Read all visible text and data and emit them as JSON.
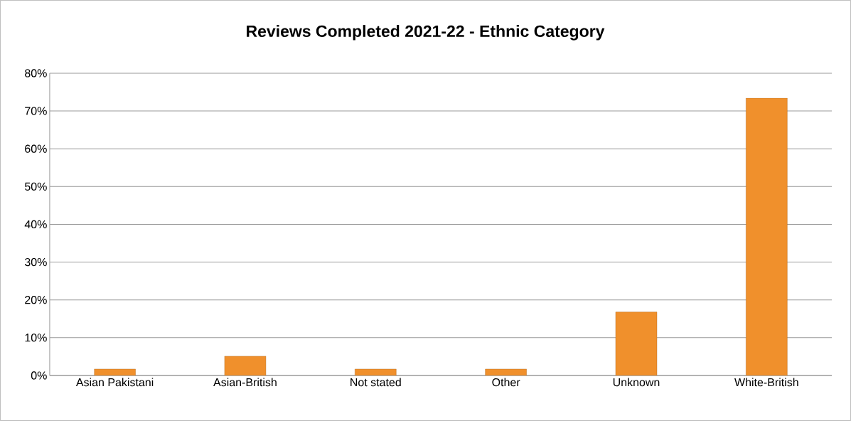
{
  "chart_data": {
    "type": "bar",
    "title": "Reviews Completed 2021-22 - Ethnic Category",
    "categories": [
      "Asian Pakistani",
      "Asian-British",
      "Not stated",
      "Other",
      "Unknown",
      "White-British"
    ],
    "values": [
      1.7,
      5.1,
      1.7,
      1.7,
      16.8,
      73.4
    ],
    "color": "#f0902c",
    "ylim": [
      0,
      80
    ],
    "yticks": [
      {
        "value": 0,
        "label": "0%"
      },
      {
        "value": 10,
        "label": "10%"
      },
      {
        "value": 20,
        "label": "20%"
      },
      {
        "value": 30,
        "label": "30%"
      },
      {
        "value": 40,
        "label": "40%"
      },
      {
        "value": 50,
        "label": "50%"
      },
      {
        "value": 60,
        "label": "60%"
      },
      {
        "value": 70,
        "label": "70%"
      },
      {
        "value": 80,
        "label": "80%"
      }
    ],
    "grid": "y"
  }
}
